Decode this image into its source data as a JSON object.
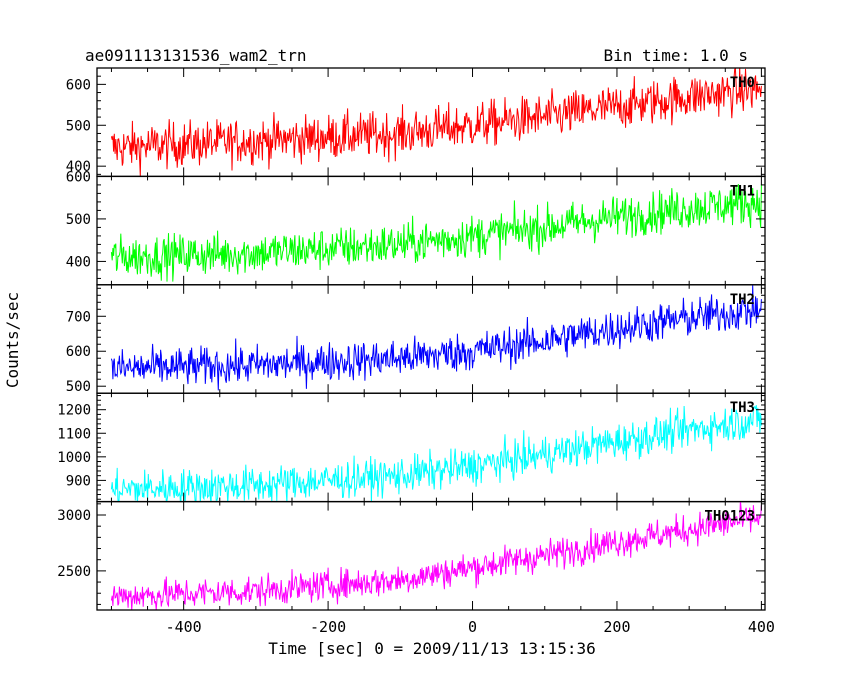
{
  "title": "ae091113131536_wam2_trn",
  "bin_time": "Bin time: 1.0 s",
  "ylabel": "Counts/sec",
  "xlabel": "Time [sec] 0 = 2009/11/13 13:15:36",
  "chart_data": {
    "type": "line",
    "title": "ae091113131536_wam2_trn",
    "xlabel": "Time [sec] 0 = 2009/11/13 13:15:36",
    "ylabel": "Counts/sec",
    "xlim": [
      -520,
      405
    ],
    "x_range": [
      -500,
      400
    ],
    "x_step": 1,
    "xticks": [
      -400,
      -200,
      0,
      200,
      400
    ],
    "panels": [
      {
        "name": "TH0",
        "color": "#ff0000",
        "ylim": [
          375,
          640
        ],
        "yticks": [
          400,
          500,
          600
        ],
        "trend": [
          [
            -500,
            445
          ],
          [
            -300,
            462
          ],
          [
            -100,
            480
          ],
          [
            0,
            500
          ],
          [
            100,
            520
          ],
          [
            200,
            545
          ],
          [
            300,
            570
          ],
          [
            400,
            590
          ]
        ],
        "noise": 28
      },
      {
        "name": "TH1",
        "color": "#00ff00",
        "ylim": [
          345,
          600
        ],
        "yticks": [
          400,
          500,
          600
        ],
        "trend": [
          [
            -500,
            410
          ],
          [
            -300,
            420
          ],
          [
            -100,
            440
          ],
          [
            0,
            460
          ],
          [
            100,
            480
          ],
          [
            200,
            505
          ],
          [
            300,
            525
          ],
          [
            400,
            540
          ]
        ],
        "noise": 25
      },
      {
        "name": "TH2",
        "color": "#0000ff",
        "ylim": [
          480,
          790
        ],
        "yticks": [
          500,
          600,
          700
        ],
        "trend": [
          [
            -500,
            550
          ],
          [
            -300,
            560
          ],
          [
            -100,
            580
          ],
          [
            0,
            600
          ],
          [
            100,
            630
          ],
          [
            200,
            665
          ],
          [
            300,
            695
          ],
          [
            400,
            720
          ]
        ],
        "noise": 28
      },
      {
        "name": "TH3",
        "color": "#00ffff",
        "ylim": [
          810,
          1270
        ],
        "yticks": [
          900,
          1000,
          1100,
          1200
        ],
        "trend": [
          [
            -500,
            860
          ],
          [
            -300,
            880
          ],
          [
            -100,
            920
          ],
          [
            0,
            960
          ],
          [
            100,
            1010
          ],
          [
            200,
            1065
          ],
          [
            300,
            1115
          ],
          [
            400,
            1160
          ]
        ],
        "noise": 40
      },
      {
        "name": "TH0123",
        "color": "#ff00ff",
        "ylim": [
          2150,
          3120
        ],
        "yticks": [
          2500,
          3000
        ],
        "trend": [
          [
            -500,
            2270
          ],
          [
            -300,
            2320
          ],
          [
            -100,
            2420
          ],
          [
            0,
            2530
          ],
          [
            100,
            2640
          ],
          [
            200,
            2760
          ],
          [
            300,
            2870
          ],
          [
            400,
            2980
          ]
        ],
        "noise": 70
      }
    ]
  }
}
